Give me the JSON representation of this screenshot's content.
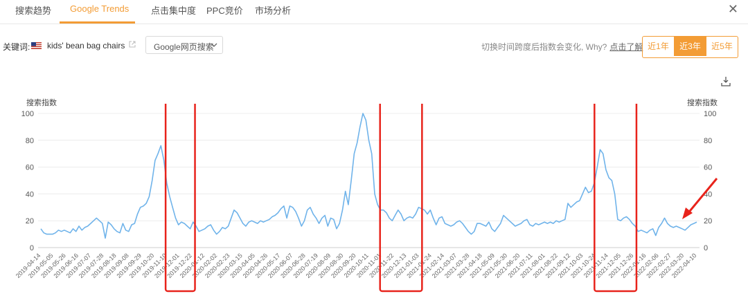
{
  "tabs": [
    {
      "label": "搜索趋势",
      "active": false
    },
    {
      "label": "Google Trends",
      "active": true
    },
    {
      "label": "点击集中度",
      "active": false
    },
    {
      "label": "PPC竞价",
      "active": false
    },
    {
      "label": "市场分析",
      "active": false
    }
  ],
  "close_label": "✕",
  "keyword": {
    "label": "关键词:",
    "flag_icon": "us-flag-icon",
    "text": "kids' bean bag chairs",
    "external_icon": "external-link-icon"
  },
  "search_type": {
    "selected": "Google网页搜索"
  },
  "hint": {
    "text": "切换时间跨度后指数会变化, Why?",
    "link": "点击了解"
  },
  "range_buttons": [
    {
      "label": "近1年",
      "active": false
    },
    {
      "label": "近3年",
      "active": true
    },
    {
      "label": "近5年",
      "active": false
    }
  ],
  "download_icon": "download-icon",
  "colors": {
    "accent": "#f39c35",
    "line": "#6fb3ea",
    "highlight": "#e8231b"
  },
  "chart_data": {
    "type": "line",
    "ylabel_left": "搜索指数",
    "ylabel_right": "搜索指数",
    "ylim": [
      0,
      100
    ],
    "y_ticks": [
      0,
      20,
      40,
      60,
      80,
      100
    ],
    "grid": true,
    "x_ticks": [
      "2019-04-14",
      "2019-05-05",
      "2019-05-26",
      "2019-06-16",
      "2019-07-07",
      "2019-07-28",
      "2019-08-18",
      "2019-09-08",
      "2019-09-29",
      "2019-10-20",
      "2019-11-10",
      "2019-12-01",
      "2019-12-22",
      "2020-01-12",
      "2020-02-02",
      "2020-02-23",
      "2020-03-15",
      "2020-04-05",
      "2020-04-26",
      "2020-05-17",
      "2020-06-07",
      "2020-06-28",
      "2020-07-19",
      "2020-08-09",
      "2020-08-30",
      "2020-09-20",
      "2020-10-11",
      "2020-11-01",
      "2020-11-22",
      "2020-12-13",
      "2021-01-03",
      "2021-01-24",
      "2021-02-14",
      "2021-03-07",
      "2021-03-28",
      "2021-04-18",
      "2021-05-09",
      "2021-05-30",
      "2021-06-20",
      "2021-07-11",
      "2021-08-01",
      "2021-08-22",
      "2021-09-12",
      "2021-10-03",
      "2021-10-24",
      "2021-11-14",
      "2021-12-05",
      "2021-12-26",
      "2022-01-16",
      "2022-02-06",
      "2022-02-27",
      "2022-03-20",
      "2022-04-10"
    ],
    "series": [
      {
        "values": [
          14,
          11,
          10,
          10,
          10,
          11,
          13,
          12,
          13,
          12,
          11,
          14,
          12,
          16,
          13,
          15,
          16,
          18,
          20,
          22,
          20,
          18,
          7,
          19,
          17,
          14,
          12,
          11,
          18,
          13,
          12,
          17,
          18,
          25,
          30,
          31,
          33,
          38,
          50,
          65,
          70,
          76,
          65,
          48,
          38,
          30,
          22,
          17,
          19,
          18,
          16,
          14,
          19,
          16,
          12,
          13,
          14,
          16,
          17,
          13,
          10,
          12,
          15,
          14,
          16,
          22,
          28,
          26,
          22,
          18,
          16,
          19,
          20,
          19,
          18,
          20,
          19,
          20,
          21,
          23,
          24,
          26,
          29,
          31,
          22,
          31,
          30,
          27,
          22,
          16,
          20,
          28,
          30,
          25,
          22,
          18,
          22,
          24,
          16,
          22,
          21,
          14,
          18,
          28,
          42,
          32,
          50,
          70,
          78,
          90,
          100,
          95,
          80,
          70,
          40,
          32,
          28,
          28,
          26,
          22,
          20,
          24,
          28,
          25,
          20,
          22,
          23,
          22,
          25,
          30,
          29,
          28,
          25,
          28,
          22,
          17,
          22,
          23,
          18,
          17,
          16,
          17,
          19,
          20,
          18,
          15,
          12,
          10,
          12,
          18,
          18,
          17,
          16,
          19,
          14,
          12,
          15,
          18,
          24,
          22,
          20,
          18,
          16,
          17,
          18,
          20,
          21,
          17,
          16,
          18,
          17,
          18,
          19,
          18,
          19,
          18,
          20,
          19,
          20,
          21,
          33,
          30,
          32,
          34,
          35,
          40,
          45,
          41,
          42,
          48,
          60,
          73,
          70,
          58,
          52,
          50,
          40,
          21,
          20,
          22,
          23,
          21,
          18,
          16,
          12,
          13,
          12,
          11,
          13,
          14,
          9,
          15,
          18,
          22,
          18,
          16,
          15,
          16,
          15,
          14,
          13,
          15,
          17,
          18,
          19
        ]
      }
    ],
    "highlights": [
      {
        "from": "2019-11-10",
        "to": "2019-12-22"
      },
      {
        "from": "2020-11-01",
        "to": "2021-01-03"
      },
      {
        "from": "2021-10-24",
        "to": "2021-12-26"
      }
    ]
  }
}
